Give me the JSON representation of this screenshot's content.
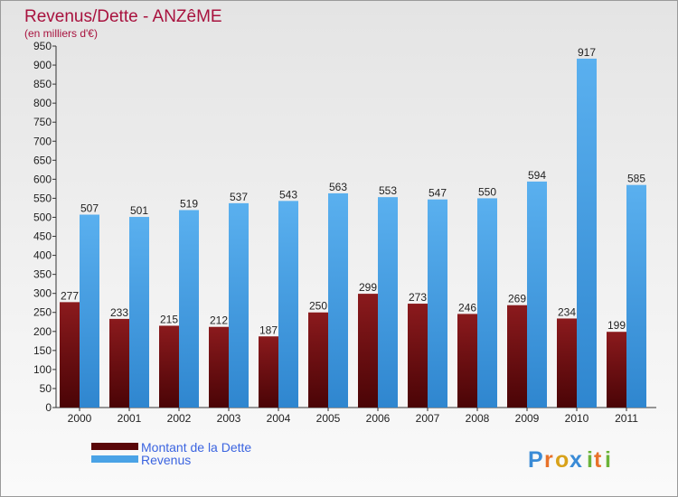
{
  "chart_data": {
    "type": "bar",
    "title": "Revenus/Dette - ANZêME",
    "subtitle": "(en milliers d'€)",
    "categories": [
      "2000",
      "2001",
      "2002",
      "2003",
      "2004",
      "2005",
      "2006",
      "2007",
      "2008",
      "2009",
      "2010",
      "2011"
    ],
    "series": [
      {
        "name": "Montant de la Dette",
        "values": [
          277,
          233,
          215,
          212,
          187,
          250,
          299,
          273,
          246,
          269,
          234,
          199
        ],
        "color": "#7a0f12"
      },
      {
        "name": "Revenus",
        "values": [
          507,
          501,
          519,
          537,
          543,
          563,
          553,
          547,
          550,
          594,
          917,
          585
        ],
        "color": "#4aa3e6"
      }
    ],
    "ylim": [
      0,
      950
    ],
    "ytick_step": 50,
    "grid": false,
    "legend_position": "bottom-left"
  },
  "logo": {
    "text": "Proxiti"
  }
}
